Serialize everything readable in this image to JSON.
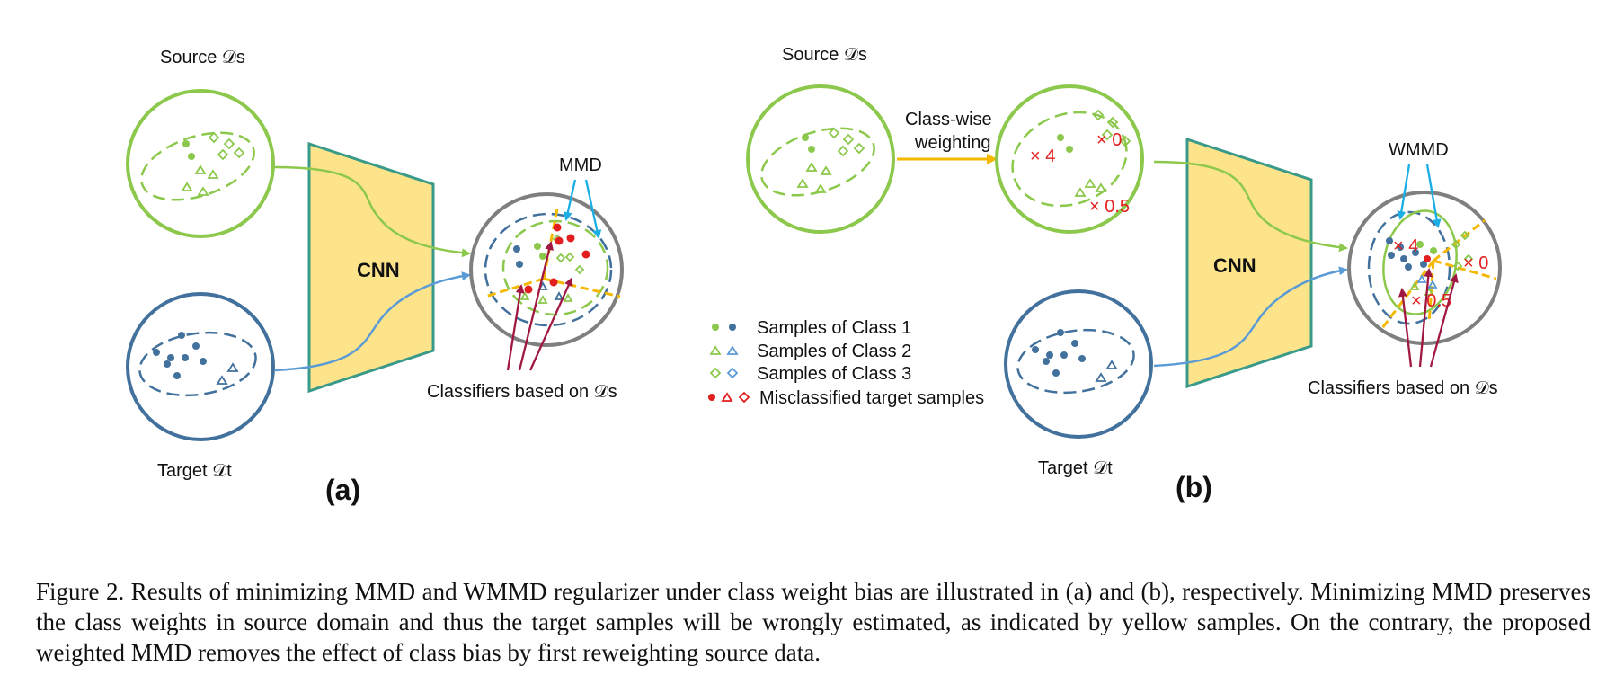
{
  "colors": {
    "green": "#8cc84b",
    "blue": "#41719c",
    "gray": "#7f7f7f",
    "cnn_fill": "#fde48a",
    "cnn_edge": "#3a9a8a",
    "red": "#e31e1e",
    "yellow": "#f5b800",
    "arrow_red": "#a01840",
    "arrow_cyan": "#1aaee5",
    "arrow_orange": "#f5b800"
  },
  "panel_a": {
    "source_label": "Source 𝒟s",
    "target_label": "Target 𝒟t",
    "cnn_label": "CNN",
    "mmd_label": "MMD",
    "classifier_label": "Classifiers based on 𝒟s",
    "panel_tag": "(a)"
  },
  "panel_b": {
    "source_label": "Source 𝒟s",
    "weighting_label_line1": "Class-wise",
    "weighting_label_line2": "weighting",
    "weights": [
      "× 4",
      "× 0",
      "× 0.5"
    ],
    "target_label": "Target 𝒟t",
    "cnn_label": "CNN",
    "wmmd_label": "WMMD",
    "output_weights": [
      "× 4",
      "× 0",
      "× 0.5"
    ],
    "classifier_label": "Classifiers based on 𝒟s",
    "panel_tag": "(b)"
  },
  "legend": {
    "items": [
      {
        "label": "Samples of Class 1",
        "symbols": [
          "green-dot-icon",
          "blue-dot-icon"
        ]
      },
      {
        "label": "Samples of Class 2",
        "symbols": [
          "green-triangle-icon",
          "blue-triangle-icon"
        ]
      },
      {
        "label": "Samples of Class 3",
        "symbols": [
          "green-diamond-icon",
          "blue-diamond-icon"
        ]
      },
      {
        "label": "Misclassified target samples",
        "symbols": [
          "red-dot-icon",
          "red-triangle-icon",
          "red-diamond-icon"
        ]
      }
    ]
  },
  "caption": "Figure 2. Results of minimizing MMD and WMMD regularizer under class weight bias are illustrated in (a) and (b), respectively. Minimizing MMD preserves the class weights in source domain and thus the target samples will be wrongly estimated, as indicated by yellow samples. On the contrary, the proposed weighted MMD removes the effect of class bias by first reweighting source data."
}
